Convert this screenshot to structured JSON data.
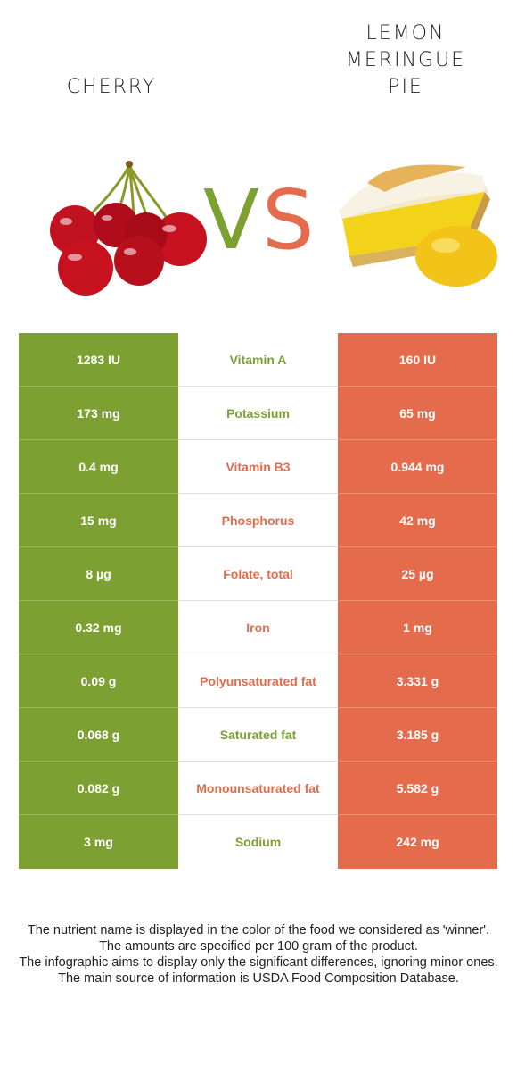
{
  "header": {
    "left_food": "CHERRY",
    "right_food": "LEMON\nMERINGUE\nPIE",
    "vs_v": "V",
    "vs_s": "S"
  },
  "colors": {
    "left_food": "#7da033",
    "right_food": "#e46b4b"
  },
  "images": {
    "left": "cherry-image",
    "right": "lemon-meringue-pie-image"
  },
  "rows": [
    {
      "left": "1283 IU",
      "nutrient": "Vitamin A",
      "right": "160 IU",
      "winner": "left"
    },
    {
      "left": "173 mg",
      "nutrient": "Potassium",
      "right": "65 mg",
      "winner": "left"
    },
    {
      "left": "0.4 mg",
      "nutrient": "Vitamin B3",
      "right": "0.944 mg",
      "winner": "right"
    },
    {
      "left": "15 mg",
      "nutrient": "Phosphorus",
      "right": "42 mg",
      "winner": "right"
    },
    {
      "left": "8 µg",
      "nutrient": "Folate, total",
      "right": "25 µg",
      "winner": "right"
    },
    {
      "left": "0.32 mg",
      "nutrient": "Iron",
      "right": "1 mg",
      "winner": "right"
    },
    {
      "left": "0.09 g",
      "nutrient": "Polyunsaturated fat",
      "right": "3.331 g",
      "winner": "right"
    },
    {
      "left": "0.068 g",
      "nutrient": "Saturated fat",
      "right": "3.185 g",
      "winner": "left"
    },
    {
      "left": "0.082 g",
      "nutrient": "Monounsaturated fat",
      "right": "5.582 g",
      "winner": "right"
    },
    {
      "left": "3 mg",
      "nutrient": "Sodium",
      "right": "242 mg",
      "winner": "left"
    }
  ],
  "footer": [
    "The nutrient name is displayed in the color of the food we considered as 'winner'.",
    "The amounts are specified per 100 gram of the product.",
    "The infographic aims to display only the significant differences, ignoring minor ones.",
    "The main source of information is USDA Food Composition Database."
  ]
}
